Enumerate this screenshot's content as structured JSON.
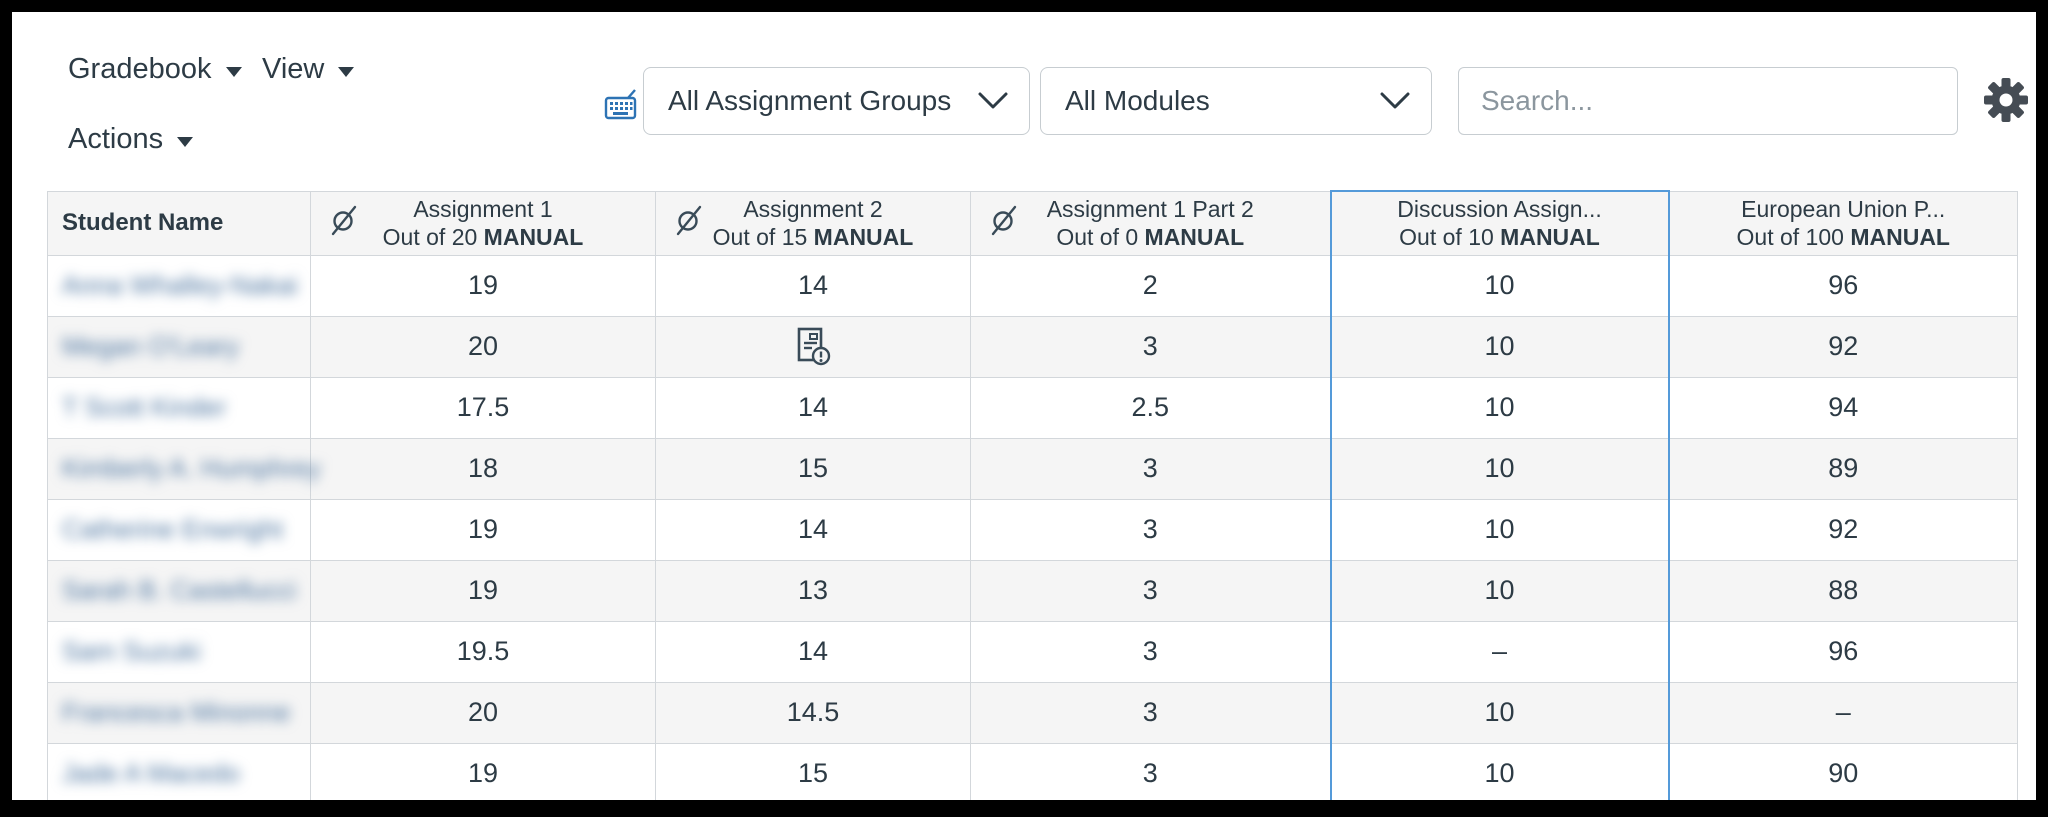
{
  "toolbar": {
    "menus": {
      "gradebook": "Gradebook",
      "view": "View",
      "actions": "Actions"
    },
    "assignment_groups_dropdown": {
      "value": "All Assignment Groups"
    },
    "modules_dropdown": {
      "value": "All Modules"
    },
    "search": {
      "placeholder": "Search...",
      "value": ""
    },
    "icons": {
      "keyboard": "keyboard-shortcuts-icon",
      "settings": "gear-icon"
    },
    "colors": {
      "keyboard_icon": "#2D73B4",
      "gear_icon": "#454C54"
    }
  },
  "table": {
    "student_header": "Student Name",
    "columns": [
      {
        "title": "Assignment 1",
        "out_of": "Out of 20",
        "flag": "MANUAL",
        "hidden_icon": true,
        "selected": false
      },
      {
        "title": "Assignment 2",
        "out_of": "Out of 15",
        "flag": "MANUAL",
        "hidden_icon": true,
        "selected": false
      },
      {
        "title": "Assignment 1 Part 2",
        "out_of": "Out of 0",
        "flag": "MANUAL",
        "hidden_icon": true,
        "selected": false
      },
      {
        "title": "Discussion Assign...",
        "out_of": "Out of 10",
        "flag": "MANUAL",
        "hidden_icon": false,
        "selected": true
      },
      {
        "title": "European Union P...",
        "out_of": "Out of 100",
        "flag": "MANUAL",
        "hidden_icon": false,
        "selected": false
      }
    ],
    "rows": [
      {
        "student_blurred": "Anna Whalley-Nakai",
        "grades": [
          "19",
          "14",
          "2",
          "10",
          "96"
        ]
      },
      {
        "student_blurred": "Megan O'Leary",
        "grades": [
          "20",
          {
            "icon": "document-warning-icon"
          },
          "3",
          "10",
          "92"
        ]
      },
      {
        "student_blurred": "T Scott Kinder",
        "grades": [
          "17.5",
          "14",
          "2.5",
          "10",
          "94"
        ]
      },
      {
        "student_blurred": "Kimberly A. Humphrey",
        "grades": [
          "18",
          "15",
          "3",
          "10",
          "89"
        ]
      },
      {
        "student_blurred": "Catherine Enwright",
        "grades": [
          "19",
          "14",
          "3",
          "10",
          "92"
        ]
      },
      {
        "student_blurred": "Sarah B. Castellucci",
        "grades": [
          "19",
          "13",
          "3",
          "10",
          "88"
        ]
      },
      {
        "student_blurred": "Sam Suzuki",
        "grades": [
          "19.5",
          "14",
          "3",
          "–",
          "96"
        ]
      },
      {
        "student_blurred": "Francesca Minonne",
        "grades": [
          "20",
          "14.5",
          "3",
          "10",
          "–"
        ]
      },
      {
        "student_blurred": "Jade A Macedo",
        "grades": [
          "19",
          "15",
          "3",
          "10",
          "90"
        ]
      }
    ],
    "selected_column_color": "#549AD9",
    "alt_row_color": "#F5F5F5"
  }
}
